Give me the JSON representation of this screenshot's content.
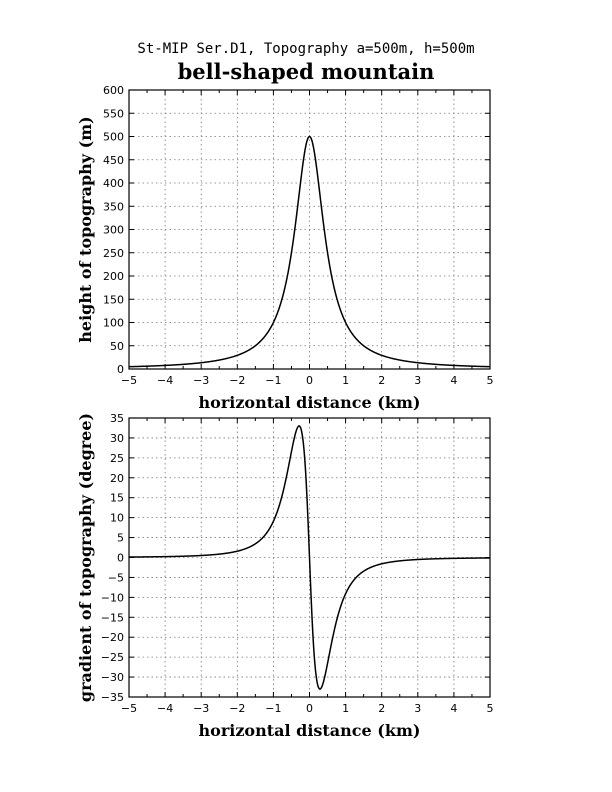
{
  "figure": {
    "suptitle": "St-MIP Ser.D1, Topography a=500m, h=500m",
    "title": "bell-shaped mountain"
  },
  "chart_data": [
    {
      "type": "line",
      "function": "h / (1 + (x/a)^2)",
      "params": {
        "h": 500,
        "a": 0.5
      },
      "xlabel": "horizontal distance (km)",
      "ylabel": "height of topography (m)",
      "xlim": [
        -5,
        5
      ],
      "ylim": [
        0,
        600
      ],
      "xticks": [
        -5,
        -4,
        -3,
        -2,
        -1,
        0,
        1,
        2,
        3,
        4,
        5
      ],
      "yticks": [
        0,
        50,
        100,
        150,
        200,
        250,
        300,
        350,
        400,
        450,
        500,
        550,
        600
      ],
      "grid": true,
      "series": [
        {
          "x": [
            -5,
            -4,
            -3,
            -2,
            -1.5,
            -1,
            -0.75,
            -0.5,
            -0.25,
            0,
            0.25,
            0.5,
            0.75,
            1,
            1.5,
            2,
            3,
            4,
            5
          ],
          "y": [
            4.95,
            7.69,
            13.51,
            29.41,
            50,
            100,
            153.8,
            250,
            400,
            500,
            400,
            250,
            153.8,
            100,
            50,
            29.41,
            13.51,
            7.69,
            4.95
          ]
        }
      ]
    },
    {
      "type": "line",
      "function": "atan(dh/dx) in degrees",
      "xlabel": "horizontal distance (km)",
      "ylabel": "gradient of topography (degree)",
      "xlim": [
        -5,
        5
      ],
      "ylim": [
        -35,
        35
      ],
      "xticks": [
        -5,
        -4,
        -3,
        -2,
        -1,
        0,
        1,
        2,
        3,
        4,
        5
      ],
      "yticks": [
        35,
        30,
        25,
        20,
        15,
        10,
        5,
        0,
        -5,
        -10,
        -15,
        -20,
        -25,
        -30,
        -35
      ],
      "grid": true,
      "series": [
        {
          "x": [
            -5,
            -4,
            -3,
            -2,
            -1,
            -0.5,
            -0.29,
            0,
            0.29,
            0.5,
            1,
            2,
            3,
            4,
            5
          ],
          "y": [
            0.56,
            0.87,
            1.56,
            3.43,
            10.2,
            26.6,
            33,
            0,
            -33,
            -26.6,
            -10.2,
            -3.43,
            -1.56,
            -0.87,
            -0.56
          ]
        }
      ]
    }
  ]
}
